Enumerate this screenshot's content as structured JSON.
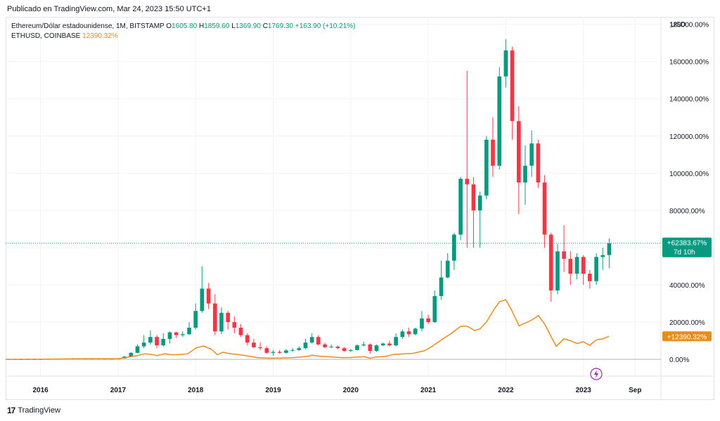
{
  "header": {
    "published": "Publicado en TradingView.com, Mar 24, 2023 15:50 UTC+1"
  },
  "legend": {
    "symbol": "Ethereum/Dólar estadounidense, 1M, BITSTAMP",
    "o_label": "O",
    "o_value": "1605.80",
    "h_label": "H",
    "h_value": "1859.60",
    "l_label": "L",
    "l_value": "1369.90",
    "c_label": "C",
    "c_value": "1769.30",
    "change": "+163.90 (+10.21%)",
    "compare_symbol": "ETHUSD, COINBASE",
    "compare_value": "12390.32%"
  },
  "footer": {
    "brand": "TradingView",
    "mark": "17"
  },
  "colors": {
    "up": "#089981",
    "down": "#f23645",
    "compare": "#e98c1b",
    "grid": "#f0f3fa",
    "text": "#131722"
  },
  "chart_data": {
    "type": "candlestick",
    "y_unit": "%",
    "ylim": [
      -9000,
      184000
    ],
    "y_ticks": [
      "180000.00%",
      "160000.00%",
      "140000.00%",
      "120000.00%",
      "100000.00%",
      "80000.00%",
      "60000.00%",
      "40000.00%",
      "20000.00%",
      "0.00%"
    ],
    "y_tick_values": [
      180000,
      160000,
      140000,
      120000,
      100000,
      80000,
      60000,
      40000,
      20000,
      0
    ],
    "currency_label": "USD",
    "x_ticks": [
      "2016",
      "2017",
      "2018",
      "2019",
      "2020",
      "2021",
      "2022",
      "2023",
      "Sep"
    ],
    "x_tick_values": [
      2016.0,
      2017.0,
      2018.0,
      2019.0,
      2020.0,
      2021.0,
      2022.0,
      2023.0,
      2023.667
    ],
    "x_range": [
      2015.55,
      2024.0
    ],
    "last_price_label": "+62383.67%",
    "countdown_label": "7d 10h",
    "compare_label": "+12390.32%",
    "last_value": 62383.67,
    "compare_last_value": 12390.32,
    "candles": [
      {
        "t": 2015.583,
        "o": 0,
        "h": 100,
        "l": -100,
        "c": 50
      },
      {
        "t": 2015.667,
        "o": 50,
        "h": 100,
        "l": -50,
        "c": 30
      },
      {
        "t": 2015.75,
        "o": 30,
        "h": 80,
        "l": 0,
        "c": 40
      },
      {
        "t": 2015.833,
        "o": 40,
        "h": 80,
        "l": 0,
        "c": 20
      },
      {
        "t": 2015.917,
        "o": 20,
        "h": 60,
        "l": 0,
        "c": 50
      },
      {
        "t": 2016.0,
        "o": 50,
        "h": 100,
        "l": 0,
        "c": 80
      },
      {
        "t": 2016.083,
        "o": 80,
        "h": 200,
        "l": 50,
        "c": 180
      },
      {
        "t": 2016.167,
        "o": 180,
        "h": 400,
        "l": 150,
        "c": 350
      },
      {
        "t": 2016.25,
        "o": 350,
        "h": 400,
        "l": 250,
        "c": 300
      },
      {
        "t": 2016.333,
        "o": 300,
        "h": 500,
        "l": 250,
        "c": 450
      },
      {
        "t": 2016.417,
        "o": 450,
        "h": 700,
        "l": 400,
        "c": 400
      },
      {
        "t": 2016.5,
        "o": 400,
        "h": 500,
        "l": 300,
        "c": 350
      },
      {
        "t": 2016.583,
        "o": 350,
        "h": 400,
        "l": 250,
        "c": 300
      },
      {
        "t": 2016.667,
        "o": 300,
        "h": 350,
        "l": 250,
        "c": 350
      },
      {
        "t": 2016.75,
        "o": 350,
        "h": 400,
        "l": 300,
        "c": 320
      },
      {
        "t": 2016.833,
        "o": 320,
        "h": 350,
        "l": 250,
        "c": 280
      },
      {
        "t": 2016.917,
        "o": 280,
        "h": 300,
        "l": 200,
        "c": 250
      },
      {
        "t": 2017.0,
        "o": 250,
        "h": 600,
        "l": 200,
        "c": 500
      },
      {
        "t": 2017.083,
        "o": 500,
        "h": 1800,
        "l": 400,
        "c": 1500
      },
      {
        "t": 2017.167,
        "o": 1500,
        "h": 3800,
        "l": 1200,
        "c": 3500
      },
      {
        "t": 2017.25,
        "o": 3500,
        "h": 8000,
        "l": 3200,
        "c": 7000
      },
      {
        "t": 2017.333,
        "o": 7000,
        "h": 13000,
        "l": 6000,
        "c": 9000
      },
      {
        "t": 2017.417,
        "o": 9000,
        "h": 15500,
        "l": 8000,
        "c": 12000
      },
      {
        "t": 2017.5,
        "o": 12000,
        "h": 13000,
        "l": 6000,
        "c": 7500
      },
      {
        "t": 2017.583,
        "o": 7500,
        "h": 14000,
        "l": 7000,
        "c": 11000
      },
      {
        "t": 2017.667,
        "o": 11000,
        "h": 15000,
        "l": 8500,
        "c": 14500
      },
      {
        "t": 2017.75,
        "o": 14500,
        "h": 14800,
        "l": 11500,
        "c": 13000
      },
      {
        "t": 2017.833,
        "o": 13000,
        "h": 15000,
        "l": 12000,
        "c": 13500
      },
      {
        "t": 2017.917,
        "o": 13500,
        "h": 20000,
        "l": 13000,
        "c": 17000
      },
      {
        "t": 2018.0,
        "o": 17000,
        "h": 30000,
        "l": 16000,
        "c": 26000
      },
      {
        "t": 2018.083,
        "o": 26000,
        "h": 50000,
        "l": 25000,
        "c": 38000
      },
      {
        "t": 2018.167,
        "o": 38000,
        "h": 41000,
        "l": 27000,
        "c": 30000
      },
      {
        "t": 2018.25,
        "o": 30000,
        "h": 35000,
        "l": 13000,
        "c": 15000
      },
      {
        "t": 2018.333,
        "o": 15000,
        "h": 28000,
        "l": 13500,
        "c": 25000
      },
      {
        "t": 2018.417,
        "o": 25000,
        "h": 26000,
        "l": 16000,
        "c": 20000
      },
      {
        "t": 2018.5,
        "o": 20000,
        "h": 23000,
        "l": 14000,
        "c": 17000
      },
      {
        "t": 2018.583,
        "o": 17000,
        "h": 19000,
        "l": 12000,
        "c": 13000
      },
      {
        "t": 2018.667,
        "o": 13000,
        "h": 14000,
        "l": 7500,
        "c": 9000
      },
      {
        "t": 2018.75,
        "o": 9000,
        "h": 11000,
        "l": 6000,
        "c": 6500
      },
      {
        "t": 2018.833,
        "o": 6500,
        "h": 9000,
        "l": 5000,
        "c": 6000
      },
      {
        "t": 2018.917,
        "o": 6000,
        "h": 7000,
        "l": 3000,
        "c": 3500
      },
      {
        "t": 2019.0,
        "o": 3500,
        "h": 5000,
        "l": 2000,
        "c": 4000
      },
      {
        "t": 2019.083,
        "o": 4000,
        "h": 5000,
        "l": 3000,
        "c": 3500
      },
      {
        "t": 2019.167,
        "o": 3500,
        "h": 5500,
        "l": 3000,
        "c": 4800
      },
      {
        "t": 2019.25,
        "o": 4800,
        "h": 6000,
        "l": 4000,
        "c": 5000
      },
      {
        "t": 2019.333,
        "o": 5000,
        "h": 7000,
        "l": 4500,
        "c": 6000
      },
      {
        "t": 2019.417,
        "o": 6000,
        "h": 11000,
        "l": 5500,
        "c": 9000
      },
      {
        "t": 2019.5,
        "o": 9000,
        "h": 14000,
        "l": 8500,
        "c": 12000
      },
      {
        "t": 2019.583,
        "o": 12000,
        "h": 13000,
        "l": 7500,
        "c": 8000
      },
      {
        "t": 2019.667,
        "o": 8000,
        "h": 9000,
        "l": 6000,
        "c": 6500
      },
      {
        "t": 2019.75,
        "o": 6500,
        "h": 8000,
        "l": 6000,
        "c": 6800
      },
      {
        "t": 2019.833,
        "o": 6800,
        "h": 7500,
        "l": 5500,
        "c": 6000
      },
      {
        "t": 2019.917,
        "o": 6000,
        "h": 6500,
        "l": 4000,
        "c": 4500
      },
      {
        "t": 2020.0,
        "o": 4500,
        "h": 5500,
        "l": 4000,
        "c": 5000
      },
      {
        "t": 2020.083,
        "o": 5000,
        "h": 8000,
        "l": 4800,
        "c": 7500
      },
      {
        "t": 2020.167,
        "o": 7500,
        "h": 9500,
        "l": 7000,
        "c": 8000
      },
      {
        "t": 2020.25,
        "o": 8000,
        "h": 8500,
        "l": 3000,
        "c": 4500
      },
      {
        "t": 2020.333,
        "o": 4500,
        "h": 8000,
        "l": 4000,
        "c": 7500
      },
      {
        "t": 2020.417,
        "o": 7500,
        "h": 9000,
        "l": 7000,
        "c": 8500
      },
      {
        "t": 2020.5,
        "o": 8500,
        "h": 10000,
        "l": 7000,
        "c": 7500
      },
      {
        "t": 2020.583,
        "o": 7500,
        "h": 14000,
        "l": 7000,
        "c": 12000
      },
      {
        "t": 2020.667,
        "o": 12000,
        "h": 16000,
        "l": 11000,
        "c": 15000
      },
      {
        "t": 2020.75,
        "o": 15000,
        "h": 17000,
        "l": 12000,
        "c": 13500
      },
      {
        "t": 2020.833,
        "o": 13500,
        "h": 17000,
        "l": 13000,
        "c": 16500
      },
      {
        "t": 2020.917,
        "o": 16500,
        "h": 26000,
        "l": 15000,
        "c": 22000
      },
      {
        "t": 2021.0,
        "o": 22000,
        "h": 24000,
        "l": 19000,
        "c": 20000
      },
      {
        "t": 2021.083,
        "o": 20000,
        "h": 37000,
        "l": 19500,
        "c": 34000
      },
      {
        "t": 2021.167,
        "o": 34000,
        "h": 53000,
        "l": 32000,
        "c": 44000
      },
      {
        "t": 2021.25,
        "o": 44000,
        "h": 57000,
        "l": 43500,
        "c": 53000
      },
      {
        "t": 2021.333,
        "o": 53000,
        "h": 68000,
        "l": 48000,
        "c": 67000
      },
      {
        "t": 2021.417,
        "o": 67000,
        "h": 98000,
        "l": 64000,
        "c": 97000
      },
      {
        "t": 2021.5,
        "o": 97000,
        "h": 155000,
        "l": 60000,
        "c": 94000
      },
      {
        "t": 2021.583,
        "o": 94000,
        "h": 98000,
        "l": 60000,
        "c": 80000
      },
      {
        "t": 2021.667,
        "o": 80000,
        "h": 90000,
        "l": 60000,
        "c": 88000
      },
      {
        "t": 2021.75,
        "o": 88000,
        "h": 120000,
        "l": 86000,
        "c": 118000
      },
      {
        "t": 2021.833,
        "o": 118000,
        "h": 130000,
        "l": 98000,
        "c": 104000
      },
      {
        "t": 2021.917,
        "o": 104000,
        "h": 157000,
        "l": 102000,
        "c": 152000
      },
      {
        "t": 2022.0,
        "o": 152000,
        "h": 172000,
        "l": 146000,
        "c": 166000
      },
      {
        "t": 2022.083,
        "o": 166000,
        "h": 168000,
        "l": 118000,
        "c": 128000
      },
      {
        "t": 2022.167,
        "o": 128000,
        "h": 136000,
        "l": 78000,
        "c": 95000
      },
      {
        "t": 2022.25,
        "o": 95000,
        "h": 115000,
        "l": 83000,
        "c": 104000
      },
      {
        "t": 2022.333,
        "o": 104000,
        "h": 123000,
        "l": 98000,
        "c": 116000
      },
      {
        "t": 2022.417,
        "o": 116000,
        "h": 118000,
        "l": 92000,
        "c": 95000
      },
      {
        "t": 2022.5,
        "o": 95000,
        "h": 99000,
        "l": 60000,
        "c": 67000
      },
      {
        "t": 2022.583,
        "o": 67000,
        "h": 68000,
        "l": 31000,
        "c": 37000
      },
      {
        "t": 2022.667,
        "o": 37000,
        "h": 62000,
        "l": 35000,
        "c": 58000
      },
      {
        "t": 2022.75,
        "o": 58000,
        "h": 72000,
        "l": 47000,
        "c": 54000
      },
      {
        "t": 2022.833,
        "o": 54000,
        "h": 58000,
        "l": 40000,
        "c": 46000
      },
      {
        "t": 2022.917,
        "o": 46000,
        "h": 57000,
        "l": 43000,
        "c": 55000
      },
      {
        "t": 2023.0,
        "o": 55000,
        "h": 56000,
        "l": 40000,
        "c": 46000
      },
      {
        "t": 2023.083,
        "o": 46000,
        "h": 48000,
        "l": 38000,
        "c": 42000
      },
      {
        "t": 2023.167,
        "o": 42000,
        "h": 57000,
        "l": 40000,
        "c": 55000
      },
      {
        "t": 2023.25,
        "o": 55000,
        "h": 60000,
        "l": 48000,
        "c": 56000
      },
      {
        "t": 2023.333,
        "o": 56000,
        "h": 65000,
        "l": 49000,
        "c": 62384
      }
    ],
    "compare_series": {
      "name": "ETHUSD, COINBASE",
      "points": [
        [
          2015.55,
          0
        ],
        [
          2016.0,
          50
        ],
        [
          2016.5,
          300
        ],
        [
          2017.0,
          300
        ],
        [
          2017.1,
          1000
        ],
        [
          2017.25,
          2000
        ],
        [
          2017.35,
          3000
        ],
        [
          2017.45,
          2500
        ],
        [
          2017.5,
          2000
        ],
        [
          2017.6,
          3000
        ],
        [
          2017.7,
          2400
        ],
        [
          2017.8,
          2600
        ],
        [
          2017.9,
          3000
        ],
        [
          2018.0,
          6000
        ],
        [
          2018.1,
          7200
        ],
        [
          2018.2,
          5500
        ],
        [
          2018.28,
          2500
        ],
        [
          2018.35,
          3800
        ],
        [
          2018.45,
          3000
        ],
        [
          2018.55,
          2600
        ],
        [
          2018.67,
          1800
        ],
        [
          2018.8,
          900
        ],
        [
          2018.95,
          600
        ],
        [
          2019.1,
          700
        ],
        [
          2019.25,
          900
        ],
        [
          2019.35,
          1200
        ],
        [
          2019.45,
          1700
        ],
        [
          2019.5,
          2200
        ],
        [
          2019.6,
          1700
        ],
        [
          2019.75,
          1300
        ],
        [
          2019.9,
          900
        ],
        [
          2020.0,
          1000
        ],
        [
          2020.17,
          1400
        ],
        [
          2020.25,
          600
        ],
        [
          2020.33,
          1300
        ],
        [
          2020.45,
          1600
        ],
        [
          2020.55,
          2600
        ],
        [
          2020.67,
          2900
        ],
        [
          2020.8,
          3200
        ],
        [
          2020.95,
          4600
        ],
        [
          2021.05,
          7000
        ],
        [
          2021.17,
          10500
        ],
        [
          2021.3,
          14000
        ],
        [
          2021.42,
          17800
        ],
        [
          2021.5,
          17800
        ],
        [
          2021.6,
          15500
        ],
        [
          2021.67,
          16500
        ],
        [
          2021.75,
          20000
        ],
        [
          2021.85,
          27000
        ],
        [
          2021.92,
          31000
        ],
        [
          2022.0,
          32000
        ],
        [
          2022.08,
          26000
        ],
        [
          2022.17,
          18000
        ],
        [
          2022.33,
          21000
        ],
        [
          2022.42,
          23500
        ],
        [
          2022.5,
          19000
        ],
        [
          2022.58,
          12500
        ],
        [
          2022.65,
          7000
        ],
        [
          2022.75,
          11000
        ],
        [
          2022.83,
          10000
        ],
        [
          2022.92,
          8500
        ],
        [
          2023.0,
          9500
        ],
        [
          2023.08,
          7500
        ],
        [
          2023.17,
          10500
        ],
        [
          2023.25,
          11000
        ],
        [
          2023.33,
          12390
        ]
      ]
    }
  }
}
